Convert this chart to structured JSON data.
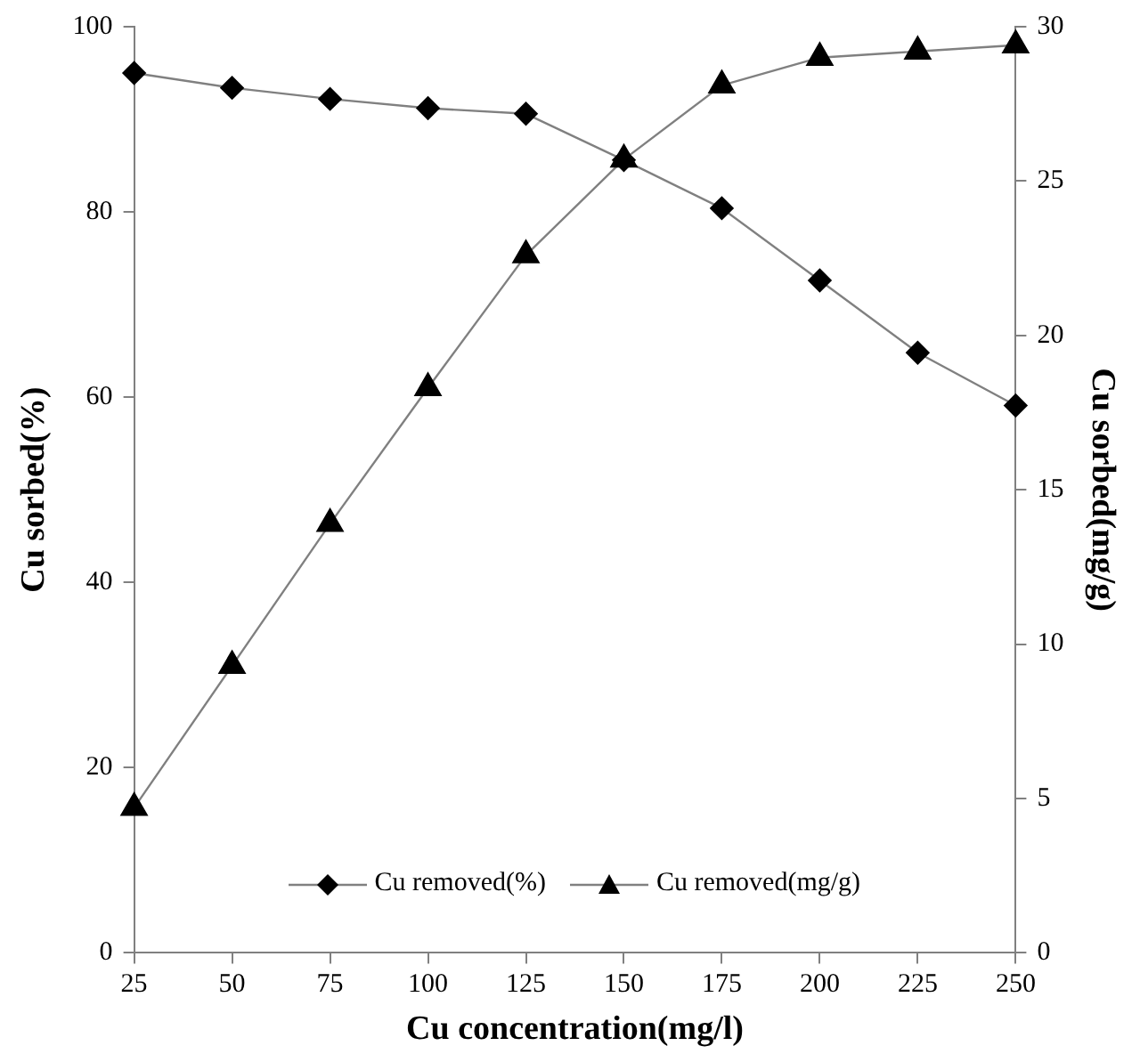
{
  "chart_data": {
    "type": "line",
    "xlabel": "Cu concentration(mg/l)",
    "ylabel": "Cu sorbed(%)",
    "y2label": "Cu sorbed(mg/g)",
    "categories": [
      "25",
      "50",
      "75",
      "100",
      "125",
      "150",
      "175",
      "200",
      "225",
      "250"
    ],
    "series": [
      {
        "name": "Cu removed(%)",
        "color": "#000000",
        "marker": "diamond",
        "values": [
          95,
          93.4,
          92.2,
          91.2,
          90.6,
          85.6,
          80.4,
          72.6,
          64.8,
          59.1
        ]
      },
      {
        "name": "Cu removed(mg/g)",
        "color": "#000000",
        "marker": "triangle",
        "axis": "y2",
        "values": [
          4.7,
          9.3,
          13.9,
          18.3,
          22.6,
          25.7,
          28.1,
          29.0,
          29.2,
          29.4
        ]
      }
    ],
    "ylim": [
      0,
      100
    ],
    "yticks": [
      0,
      20,
      40,
      60,
      80,
      100
    ],
    "y2lim": [
      0,
      30
    ],
    "y2ticks": [
      0,
      5,
      10,
      15,
      20,
      25,
      30
    ],
    "grid": false,
    "legend": "bottom",
    "line_style": "solid"
  }
}
